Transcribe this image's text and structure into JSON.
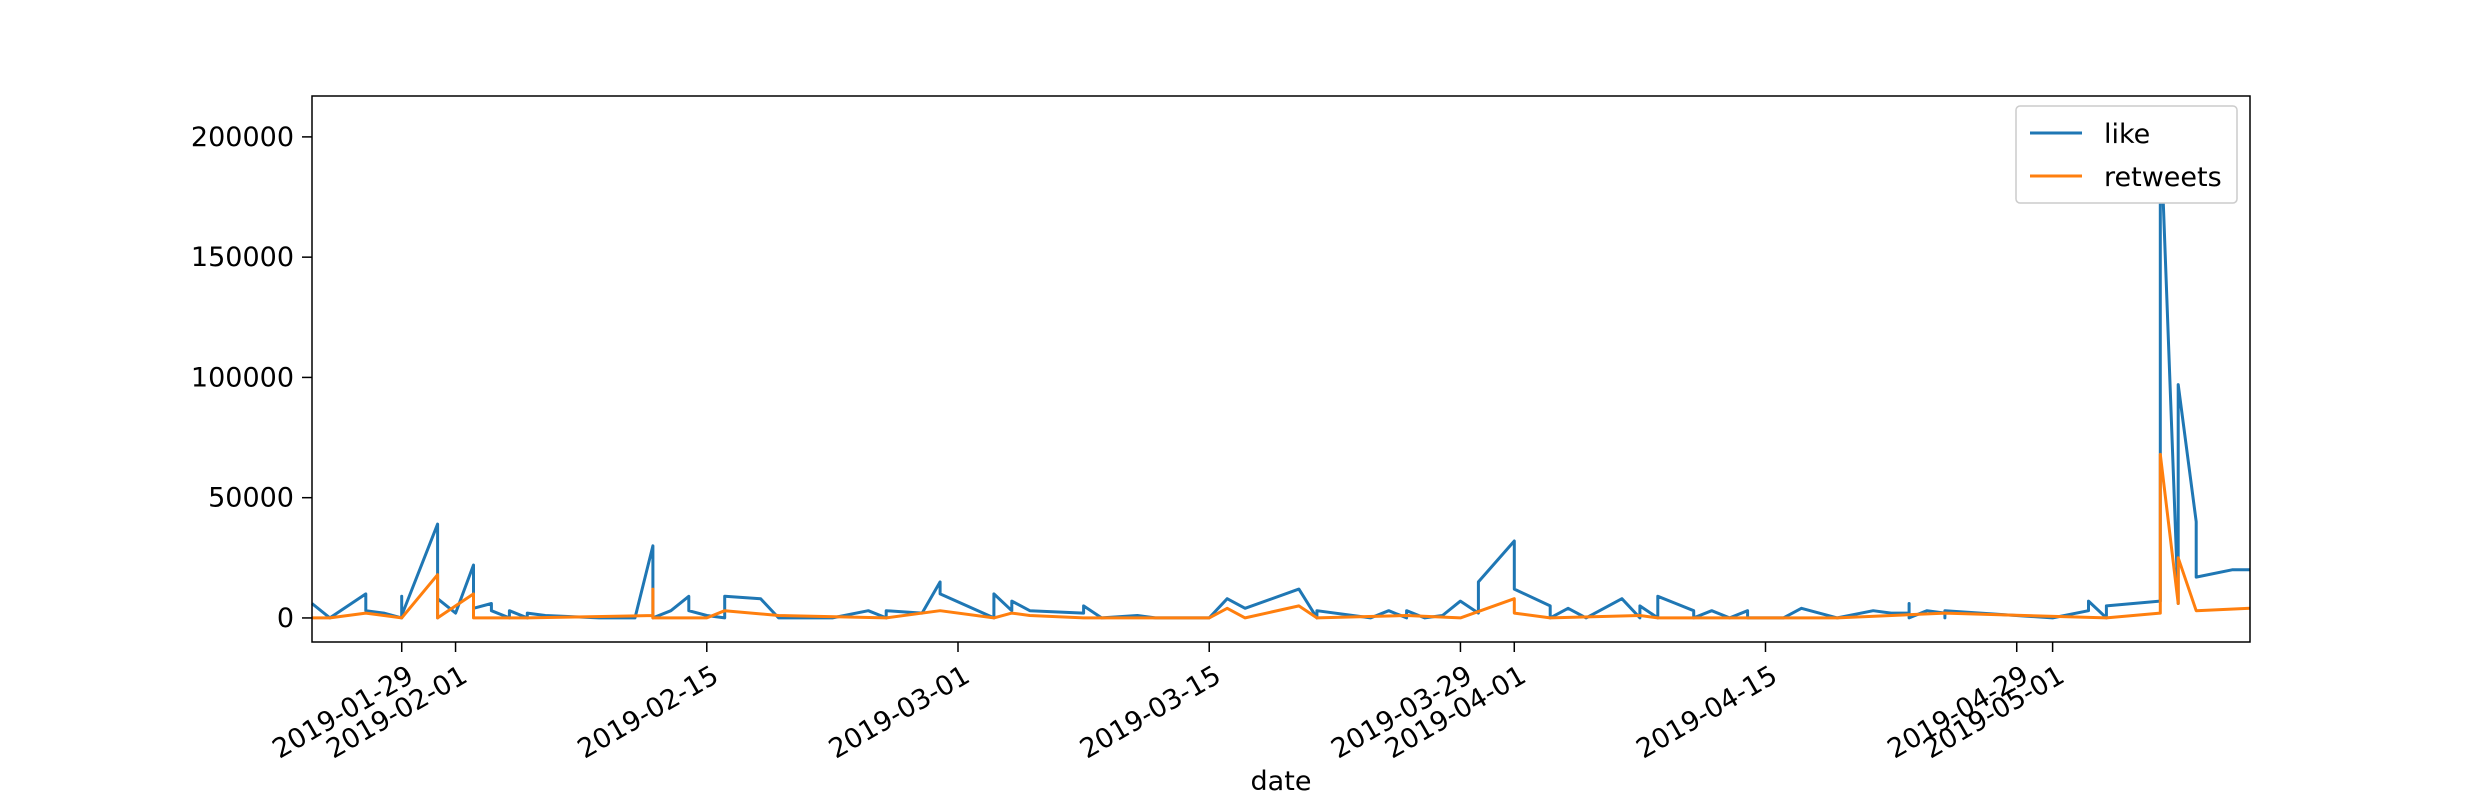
{
  "chart_data": {
    "type": "line",
    "xlabel": "date",
    "ylabel": "",
    "x_axis": {
      "type": "date",
      "range": [
        "2019-01-24",
        "2019-05-12"
      ],
      "ticks": [
        "2019-01-29",
        "2019-02-01",
        "2019-02-15",
        "2019-03-01",
        "2019-03-15",
        "2019-03-29",
        "2019-04-01",
        "2019-04-15",
        "2019-04-29",
        "2019-05-01"
      ]
    },
    "y_axis": {
      "range": [
        -10000,
        217000
      ],
      "ticks": [
        0,
        50000,
        100000,
        150000,
        200000
      ]
    },
    "grid": false,
    "legend": {
      "placement": "top-right"
    },
    "series": [
      {
        "name": "like",
        "color": "#1f77b4",
        "points": [
          [
            "2019-01-24",
            6000
          ],
          [
            "2019-01-25",
            0
          ],
          [
            "2019-01-27",
            10000
          ],
          [
            "2019-01-27",
            3000
          ],
          [
            "2019-01-28",
            2000
          ],
          [
            "2019-01-29",
            0
          ],
          [
            "2019-01-29",
            9000
          ],
          [
            "2019-01-29",
            1000
          ],
          [
            "2019-01-31",
            39000
          ],
          [
            "2019-01-31",
            0
          ],
          [
            "2019-01-31",
            8000
          ],
          [
            "2019-02-01",
            2000
          ],
          [
            "2019-02-02",
            22000
          ],
          [
            "2019-02-02",
            4000
          ],
          [
            "2019-02-03",
            6000
          ],
          [
            "2019-02-03",
            3000
          ],
          [
            "2019-02-04",
            0
          ],
          [
            "2019-02-04",
            3000
          ],
          [
            "2019-02-05",
            0
          ],
          [
            "2019-02-05",
            2000
          ],
          [
            "2019-02-06",
            1000
          ],
          [
            "2019-02-09",
            0
          ],
          [
            "2019-02-11",
            0
          ],
          [
            "2019-02-12",
            30000
          ],
          [
            "2019-02-12",
            0
          ],
          [
            "2019-02-13",
            3000
          ],
          [
            "2019-02-14",
            9000
          ],
          [
            "2019-02-14",
            3000
          ],
          [
            "2019-02-15",
            1000
          ],
          [
            "2019-02-16",
            0
          ],
          [
            "2019-02-16",
            9000
          ],
          [
            "2019-02-18",
            8000
          ],
          [
            "2019-02-19",
            0
          ],
          [
            "2019-02-22",
            0
          ],
          [
            "2019-02-24",
            3000
          ],
          [
            "2019-02-25",
            0
          ],
          [
            "2019-02-25",
            3000
          ],
          [
            "2019-02-27",
            2000
          ],
          [
            "2019-02-28",
            15000
          ],
          [
            "2019-02-28",
            10000
          ],
          [
            "2019-03-03",
            0
          ],
          [
            "2019-03-03",
            10000
          ],
          [
            "2019-03-04",
            3000
          ],
          [
            "2019-03-04",
            7000
          ],
          [
            "2019-03-05",
            3000
          ],
          [
            "2019-03-08",
            2000
          ],
          [
            "2019-03-08",
            5000
          ],
          [
            "2019-03-09",
            0
          ],
          [
            "2019-03-11",
            1000
          ],
          [
            "2019-03-12",
            0
          ],
          [
            "2019-03-13",
            0
          ],
          [
            "2019-03-15",
            0
          ],
          [
            "2019-03-16",
            8000
          ],
          [
            "2019-03-17",
            4000
          ],
          [
            "2019-03-20",
            12000
          ],
          [
            "2019-03-21",
            0
          ],
          [
            "2019-03-21",
            3000
          ],
          [
            "2019-03-23",
            1000
          ],
          [
            "2019-03-24",
            0
          ],
          [
            "2019-03-25",
            3000
          ],
          [
            "2019-03-26",
            0
          ],
          [
            "2019-03-26",
            3000
          ],
          [
            "2019-03-27",
            0
          ],
          [
            "2019-03-28",
            1000
          ],
          [
            "2019-03-29",
            7000
          ],
          [
            "2019-03-30",
            2000
          ],
          [
            "2019-03-30",
            15000
          ],
          [
            "2019-04-01",
            32000
          ],
          [
            "2019-04-01",
            12000
          ],
          [
            "2019-04-03",
            5000
          ],
          [
            "2019-04-03",
            0
          ],
          [
            "2019-04-04",
            4000
          ],
          [
            "2019-04-05",
            0
          ],
          [
            "2019-04-07",
            8000
          ],
          [
            "2019-04-08",
            0
          ],
          [
            "2019-04-08",
            5000
          ],
          [
            "2019-04-09",
            0
          ],
          [
            "2019-04-09",
            9000
          ],
          [
            "2019-04-10",
            6000
          ],
          [
            "2019-04-11",
            3000
          ],
          [
            "2019-04-11",
            0
          ],
          [
            "2019-04-12",
            3000
          ],
          [
            "2019-04-13",
            0
          ],
          [
            "2019-04-13",
            0
          ],
          [
            "2019-04-14",
            3000
          ],
          [
            "2019-04-14",
            0
          ],
          [
            "2019-04-16",
            0
          ],
          [
            "2019-04-17",
            4000
          ],
          [
            "2019-04-19",
            0
          ],
          [
            "2019-04-21",
            3000
          ],
          [
            "2019-04-22",
            2000
          ],
          [
            "2019-04-23",
            2000
          ],
          [
            "2019-04-23",
            6000
          ],
          [
            "2019-04-23",
            0
          ],
          [
            "2019-04-24",
            3000
          ],
          [
            "2019-04-25",
            2000
          ],
          [
            "2019-04-25",
            0
          ],
          [
            "2019-04-25",
            3000
          ],
          [
            "2019-05-01",
            0
          ],
          [
            "2019-05-03",
            3000
          ],
          [
            "2019-05-03",
            7000
          ],
          [
            "2019-05-04",
            0
          ],
          [
            "2019-05-04",
            4000
          ],
          [
            "2019-05-04",
            0
          ],
          [
            "2019-05-04",
            5000
          ],
          [
            "2019-05-07",
            7000
          ],
          [
            "2019-05-07",
            206000
          ],
          [
            "2019-05-08",
            6000
          ],
          [
            "2019-05-08",
            97000
          ],
          [
            "2019-05-09",
            40000
          ],
          [
            "2019-05-09",
            17000
          ],
          [
            "2019-05-11",
            20000
          ],
          [
            "2019-05-12",
            20000
          ]
        ]
      },
      {
        "name": "retweets",
        "color": "#ff7f0e",
        "points": [
          [
            "2019-01-24",
            0
          ],
          [
            "2019-01-25",
            0
          ],
          [
            "2019-01-27",
            2000
          ],
          [
            "2019-01-29",
            0
          ],
          [
            "2019-01-31",
            18000
          ],
          [
            "2019-01-31",
            0
          ],
          [
            "2019-02-02",
            10000
          ],
          [
            "2019-02-02",
            0
          ],
          [
            "2019-02-05",
            0
          ],
          [
            "2019-02-12",
            1000
          ],
          [
            "2019-02-12",
            12000
          ],
          [
            "2019-02-12",
            0
          ],
          [
            "2019-02-15",
            0
          ],
          [
            "2019-02-16",
            3000
          ],
          [
            "2019-02-19",
            1000
          ],
          [
            "2019-02-25",
            0
          ],
          [
            "2019-02-28",
            3000
          ],
          [
            "2019-03-03",
            0
          ],
          [
            "2019-03-04",
            2000
          ],
          [
            "2019-03-05",
            1000
          ],
          [
            "2019-03-08",
            0
          ],
          [
            "2019-03-15",
            0
          ],
          [
            "2019-03-16",
            4000
          ],
          [
            "2019-03-17",
            0
          ],
          [
            "2019-03-20",
            5000
          ],
          [
            "2019-03-21",
            0
          ],
          [
            "2019-03-26",
            1000
          ],
          [
            "2019-03-29",
            0
          ],
          [
            "2019-04-01",
            8000
          ],
          [
            "2019-04-01",
            2000
          ],
          [
            "2019-04-03",
            0
          ],
          [
            "2019-04-08",
            1000
          ],
          [
            "2019-04-09",
            0
          ],
          [
            "2019-04-14",
            0
          ],
          [
            "2019-04-19",
            0
          ],
          [
            "2019-04-25",
            2000
          ],
          [
            "2019-05-04",
            0
          ],
          [
            "2019-05-07",
            2000
          ],
          [
            "2019-05-07",
            68000
          ],
          [
            "2019-05-08",
            6000
          ],
          [
            "2019-05-08",
            25000
          ],
          [
            "2019-05-09",
            3000
          ],
          [
            "2019-05-12",
            4000
          ]
        ]
      }
    ]
  }
}
